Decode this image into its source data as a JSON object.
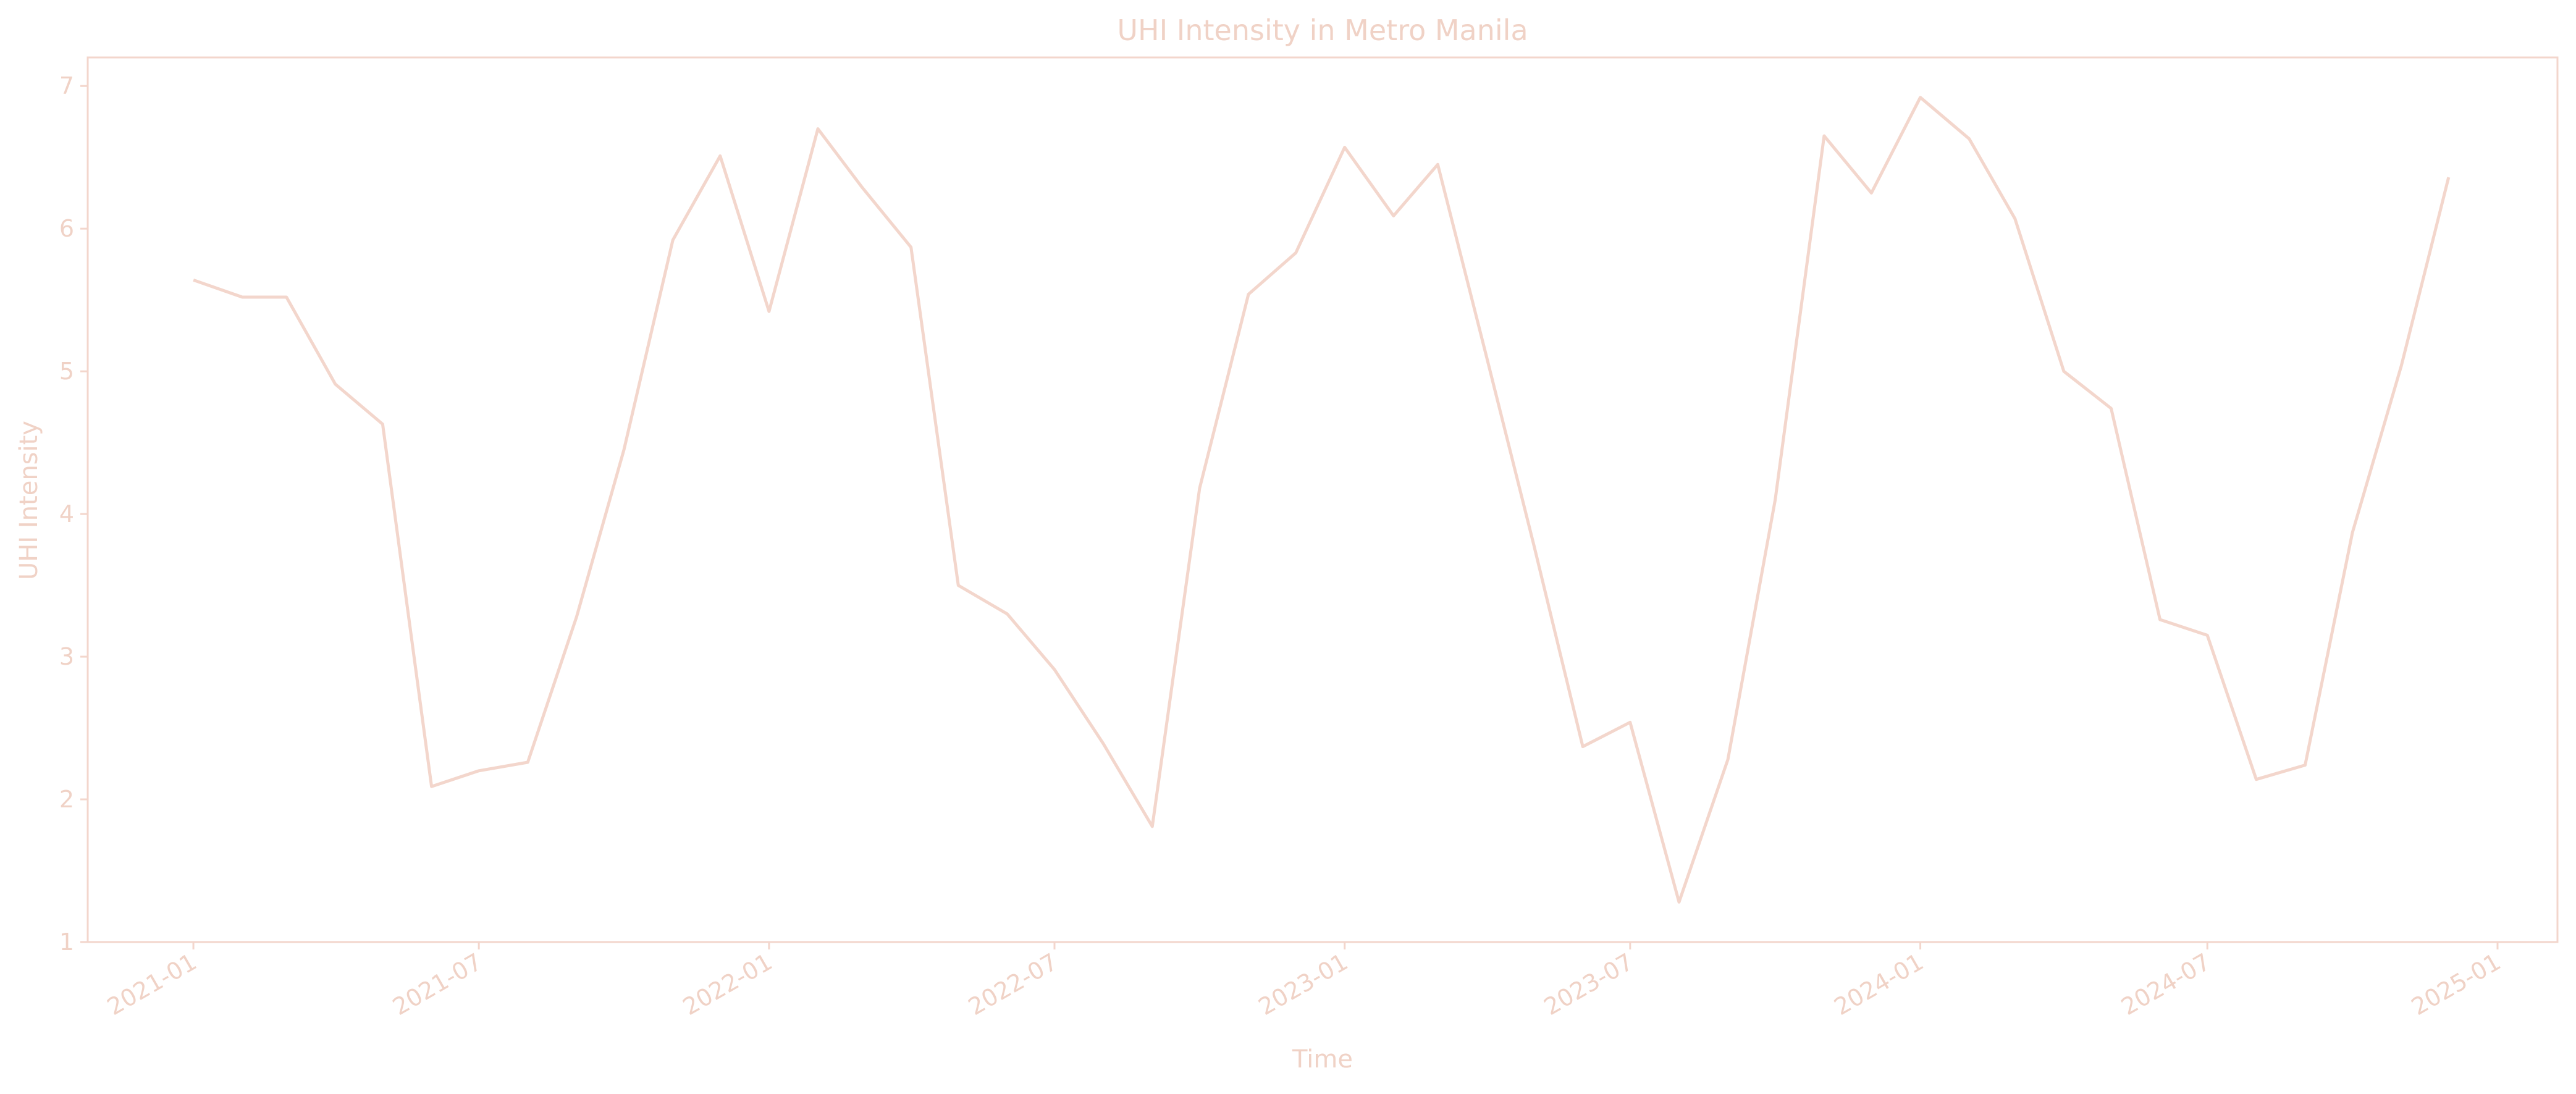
{
  "colors": {
    "line": "#f3d6cc",
    "axis": "#f3d6cc",
    "text": "#f0d2c6",
    "background": "#ffffff"
  },
  "chart_data": {
    "type": "line",
    "title": "UHI Intensity in Metro Manila",
    "xlabel": "Time",
    "ylabel": "UHI Intensity",
    "ylim": [
      1,
      7.2
    ],
    "xlim": [
      "2020-10-26",
      "2025-02-08"
    ],
    "grid": false,
    "y_ticks": [
      1,
      2,
      3,
      4,
      5,
      6,
      7
    ],
    "x_ticks": [
      "2021-01",
      "2021-07",
      "2022-01",
      "2022-07",
      "2023-01",
      "2023-07",
      "2024-01",
      "2024-07",
      "2025-01"
    ],
    "series": [
      {
        "x": [
          "2021-01",
          "2021-02",
          "2021-03",
          "2021-04",
          "2021-05",
          "2021-06",
          "2021-07",
          "2021-08",
          "2021-09",
          "2021-10",
          "2021-11",
          "2021-12",
          "2022-01",
          "2022-02",
          "2022-03",
          "2022-04",
          "2022-05",
          "2022-06",
          "2022-07",
          "2022-08",
          "2022-09",
          "2022-10",
          "2022-11",
          "2022-12",
          "2023-01",
          "2023-02",
          "2023-03",
          "2023-04",
          "2023-05",
          "2023-06",
          "2023-07",
          "2023-08",
          "2023-09",
          "2023-10",
          "2023-11",
          "2023-12",
          "2024-01",
          "2024-02",
          "2024-03",
          "2024-04",
          "2024-05",
          "2024-06",
          "2024-07",
          "2024-08",
          "2024-09",
          "2024-10",
          "2024-11",
          "2024-12"
        ],
        "values": [
          5.64,
          5.52,
          5.52,
          4.91,
          4.63,
          2.09,
          2.2,
          2.26,
          3.28,
          4.45,
          5.92,
          6.51,
          5.42,
          6.7,
          6.29,
          5.87,
          3.5,
          3.3,
          2.91,
          2.39,
          1.81,
          4.18,
          5.54,
          5.83,
          6.57,
          6.09,
          6.45,
          5.1,
          3.78,
          2.37,
          2.54,
          1.28,
          2.28,
          4.1,
          6.65,
          6.25,
          6.92,
          6.63,
          6.07,
          5.0,
          4.74,
          3.26,
          3.15,
          2.14,
          2.24,
          3.87,
          5.04,
          6.36
        ]
      }
    ]
  }
}
